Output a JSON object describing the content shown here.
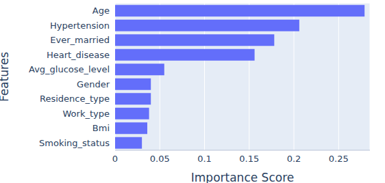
{
  "chart_data": {
    "type": "bar",
    "orientation": "horizontal",
    "x_label": "Importance Score",
    "y_label": "Features",
    "categories": [
      "Age",
      "Hypertension",
      "Ever_married",
      "Heart_disease",
      "Avg_glucose_level",
      "Gender",
      "Residence_type",
      "Work_type",
      "Bmi",
      "Smoking_status"
    ],
    "values": [
      0.279,
      0.206,
      0.178,
      0.156,
      0.055,
      0.04,
      0.04,
      0.038,
      0.036,
      0.03
    ],
    "color": "#636efa",
    "xlim": [
      0,
      0.285
    ],
    "xticks": [
      0,
      0.05,
      0.1,
      0.15,
      0.2,
      0.25
    ],
    "grid": true
  }
}
